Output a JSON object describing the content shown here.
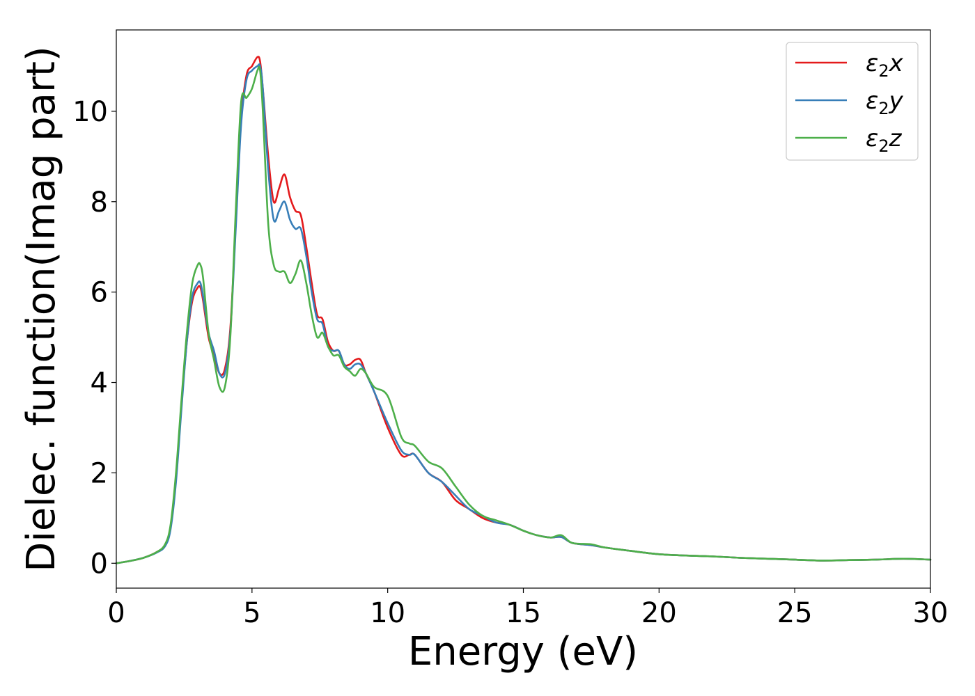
{
  "chart_data": {
    "type": "line",
    "title": "",
    "xlabel": "Energy (eV)",
    "ylabel": "Dielec. function(Imag part)",
    "xlim": [
      0,
      30
    ],
    "ylim": [
      -0.55,
      11.8
    ],
    "xticks": [
      "0",
      "5",
      "10",
      "15",
      "20",
      "25",
      "30"
    ],
    "yticks": [
      "0",
      "2",
      "4",
      "6",
      "8",
      "10"
    ],
    "grid": false,
    "legend_position": "top-right",
    "series": [
      {
        "name": "ε₂x",
        "legend_base": "ε",
        "legend_sub": "2",
        "legend_var": "x",
        "color": "#e41a1c",
        "x": [
          0,
          0.5,
          1.0,
          1.5,
          1.8,
          2.0,
          2.2,
          2.4,
          2.6,
          2.8,
          3.0,
          3.1,
          3.2,
          3.4,
          3.6,
          3.8,
          4.0,
          4.2,
          4.4,
          4.6,
          4.8,
          5.0,
          5.2,
          5.3,
          5.4,
          5.6,
          5.8,
          6.0,
          6.2,
          6.4,
          6.6,
          6.8,
          7.0,
          7.2,
          7.4,
          7.6,
          7.8,
          8.0,
          8.2,
          8.4,
          8.6,
          8.8,
          9.0,
          9.2,
          9.5,
          10.0,
          10.5,
          10.8,
          11.0,
          11.5,
          12.0,
          12.5,
          13.0,
          13.5,
          14.0,
          14.5,
          15.0,
          15.5,
          16.0,
          16.4,
          16.8,
          17.5,
          18.0,
          19.0,
          20.0,
          21.0,
          22.0,
          23.0,
          24.0,
          25.0,
          26.0,
          27.0,
          28.0,
          29.0,
          30.0
        ],
        "values": [
          0,
          0.05,
          0.12,
          0.25,
          0.4,
          0.8,
          1.9,
          3.5,
          4.9,
          5.8,
          6.1,
          6.1,
          5.8,
          5.0,
          4.6,
          4.2,
          4.3,
          5.2,
          7.5,
          9.8,
          10.8,
          11.0,
          11.2,
          11.1,
          10.5,
          9.0,
          8.0,
          8.3,
          8.6,
          8.1,
          7.8,
          7.7,
          7.0,
          6.2,
          5.5,
          5.4,
          4.9,
          4.7,
          4.7,
          4.4,
          4.4,
          4.5,
          4.5,
          4.2,
          3.8,
          3.0,
          2.4,
          2.4,
          2.4,
          2.0,
          1.8,
          1.4,
          1.2,
          1.0,
          0.9,
          0.85,
          0.72,
          0.62,
          0.57,
          0.58,
          0.45,
          0.4,
          0.35,
          0.27,
          0.2,
          0.17,
          0.15,
          0.12,
          0.1,
          0.08,
          0.06,
          0.07,
          0.08,
          0.1,
          0.08
        ]
      },
      {
        "name": "ε₂y",
        "legend_base": "ε",
        "legend_sub": "2",
        "legend_var": "y",
        "color": "#377eb8",
        "x": [
          0,
          0.5,
          1.0,
          1.5,
          1.8,
          2.0,
          2.2,
          2.4,
          2.6,
          2.8,
          3.0,
          3.1,
          3.2,
          3.4,
          3.6,
          3.8,
          4.0,
          4.2,
          4.4,
          4.6,
          4.8,
          5.0,
          5.2,
          5.3,
          5.4,
          5.6,
          5.8,
          6.0,
          6.2,
          6.4,
          6.6,
          6.8,
          7.0,
          7.2,
          7.4,
          7.6,
          7.8,
          8.0,
          8.2,
          8.4,
          8.6,
          8.8,
          9.0,
          9.2,
          9.5,
          10.0,
          10.5,
          10.8,
          11.0,
          11.5,
          12.0,
          12.5,
          13.0,
          13.5,
          14.0,
          14.5,
          15.0,
          15.5,
          16.0,
          16.4,
          16.8,
          17.5,
          18.0,
          19.0,
          20.0,
          21.0,
          22.0,
          23.0,
          24.0,
          25.0,
          26.0,
          27.0,
          28.0,
          29.0,
          30.0
        ],
        "values": [
          0,
          0.05,
          0.12,
          0.24,
          0.38,
          0.75,
          1.8,
          3.4,
          4.9,
          5.9,
          6.2,
          6.2,
          5.9,
          5.1,
          4.7,
          4.2,
          4.2,
          5.1,
          7.4,
          9.7,
          10.7,
          10.9,
          11.0,
          11.0,
          10.5,
          8.7,
          7.6,
          7.8,
          8.0,
          7.6,
          7.4,
          7.4,
          6.8,
          6.0,
          5.4,
          5.3,
          4.8,
          4.7,
          4.7,
          4.4,
          4.3,
          4.4,
          4.4,
          4.2,
          3.8,
          3.1,
          2.5,
          2.4,
          2.4,
          2.0,
          1.8,
          1.5,
          1.2,
          1.05,
          0.9,
          0.85,
          0.72,
          0.62,
          0.57,
          0.58,
          0.45,
          0.4,
          0.35,
          0.27,
          0.2,
          0.17,
          0.15,
          0.12,
          0.1,
          0.08,
          0.06,
          0.07,
          0.08,
          0.1,
          0.08
        ]
      },
      {
        "name": "ε₂z",
        "legend_base": "ε",
        "legend_sub": "2",
        "legend_var": "z",
        "color": "#4daf4a",
        "x": [
          0,
          0.5,
          1.0,
          1.5,
          1.8,
          2.0,
          2.2,
          2.4,
          2.6,
          2.8,
          3.0,
          3.1,
          3.2,
          3.4,
          3.6,
          3.8,
          4.0,
          4.2,
          4.4,
          4.6,
          4.8,
          5.0,
          5.2,
          5.3,
          5.4,
          5.6,
          5.8,
          6.0,
          6.2,
          6.4,
          6.6,
          6.8,
          7.0,
          7.2,
          7.4,
          7.6,
          7.8,
          8.0,
          8.2,
          8.4,
          8.6,
          8.8,
          9.0,
          9.2,
          9.5,
          10.0,
          10.5,
          10.8,
          11.0,
          11.5,
          12.0,
          12.5,
          13.0,
          13.5,
          14.0,
          14.5,
          15.0,
          15.5,
          16.0,
          16.4,
          16.8,
          17.5,
          18.0,
          19.0,
          20.0,
          21.0,
          22.0,
          23.0,
          24.0,
          25.0,
          26.0,
          27.0,
          28.0,
          29.0,
          30.0
        ],
        "values": [
          0,
          0.05,
          0.12,
          0.25,
          0.42,
          0.85,
          2.0,
          3.6,
          5.1,
          6.2,
          6.6,
          6.6,
          6.3,
          5.1,
          4.5,
          3.9,
          3.9,
          5.0,
          7.8,
          10.2,
          10.3,
          10.5,
          10.9,
          10.9,
          10.0,
          7.5,
          6.6,
          6.45,
          6.45,
          6.2,
          6.4,
          6.7,
          6.2,
          5.5,
          5.0,
          5.1,
          4.8,
          4.6,
          4.6,
          4.35,
          4.25,
          4.15,
          4.3,
          4.2,
          3.9,
          3.7,
          2.8,
          2.65,
          2.6,
          2.25,
          2.1,
          1.7,
          1.3,
          1.05,
          0.95,
          0.85,
          0.72,
          0.62,
          0.57,
          0.62,
          0.45,
          0.42,
          0.35,
          0.27,
          0.2,
          0.17,
          0.15,
          0.12,
          0.1,
          0.08,
          0.06,
          0.07,
          0.08,
          0.1,
          0.08
        ]
      }
    ]
  }
}
